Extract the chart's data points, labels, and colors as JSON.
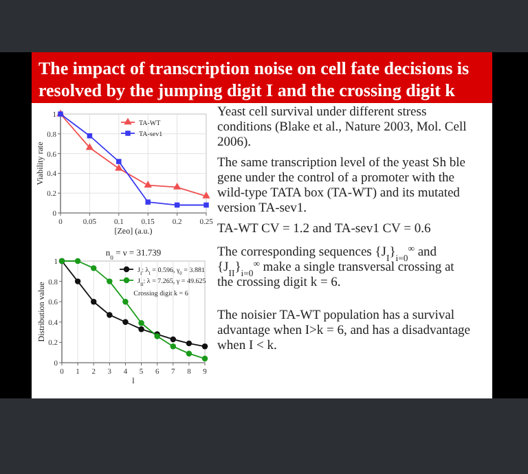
{
  "chart_data": [
    {
      "type": "other",
      "title": "The impact of transcription noise on cell fate decisions is resolved by the jumping digit I and the crossing digit k",
      "annotations": [
        "Yeast cell survival under different stress conditions (Blake et al., Nature 2003, Mol. Cell 2006).",
        "The same transcription level of the yeast Sh ble gene under the control of a promoter with the wild-type TATA box (TA-WT) and its mutated version TA-sev1.",
        "TA-WT CV = 1.2 and TA-sev1 CV = 0.6",
        "The corresponding sequences {J$_{I}$}$_{i=0}$$^{∞}$ and {J$_{II}$}$_{i=0}$$^{∞}$ make a single transversal crossing at the crossing digit k = 6.",
        "The noisier TA-WT population has a survival advantage when I>k = 6, and has a disadvantage when I < k."
      ]
    },
    {
      "type": "line",
      "xlabel": "[Zeo] (a.u.)",
      "ylabel": "Viability rate",
      "xlim": [
        0,
        0.25
      ],
      "xticks": [
        0,
        0.05,
        0.1,
        0.15,
        0.2,
        0.25
      ],
      "ylim": [
        0,
        1
      ],
      "yticks": [
        0,
        0.2,
        0.4,
        0.6,
        0.8,
        1
      ],
      "grid": true,
      "legend": "top right",
      "series": [
        {
          "name": "TA-WT",
          "color": "#f05050",
          "marker": "triangle",
          "x": [
            0,
            0.05,
            0.1,
            0.15,
            0.2,
            0.25
          ],
          "values": [
            1,
            0.66,
            0.45,
            0.28,
            0.26,
            0.17
          ]
        },
        {
          "name": "TA-sev1",
          "color": "#3a3af0",
          "marker": "square",
          "x": [
            0,
            0.05,
            0.1,
            0.15,
            0.2,
            0.25
          ],
          "values": [
            1,
            0.78,
            0.52,
            0.11,
            0.08,
            0.08
          ]
        }
      ]
    },
    {
      "type": "line",
      "title": "n$_{0}$ = ν = 31.739",
      "xlabel": "l",
      "ylabel": "Distribution value",
      "xlim": [
        0,
        9
      ],
      "xticks": [
        0,
        1,
        2,
        3,
        4,
        5,
        6,
        7,
        8,
        9
      ],
      "ylim": [
        0,
        1
      ],
      "yticks": [
        0,
        0.2,
        0.4,
        0.6,
        0.8,
        1
      ],
      "grid": "x",
      "legend": "top right",
      "marker": "circle",
      "annotations": [
        "Crossing digit k = 6"
      ],
      "series": [
        {
          "name": "J$_{I}$: λ$_{I}$ = 0.596, γ$_{0}$ = 3.881",
          "color": "#111111",
          "x": [
            0,
            1,
            2,
            3,
            4,
            5,
            6,
            7,
            8,
            9
          ],
          "values": [
            1,
            0.8,
            0.6,
            0.47,
            0.4,
            0.33,
            0.28,
            0.23,
            0.19,
            0.16
          ]
        },
        {
          "name": "J$_{II}$: λ = 7.265, γ = 49.625",
          "color": "#1a9a1a",
          "x": [
            0,
            1,
            2,
            3,
            4,
            5,
            6,
            7,
            8,
            9
          ],
          "values": [
            1,
            1,
            0.93,
            0.8,
            0.6,
            0.39,
            0.26,
            0.16,
            0.09,
            0.04
          ]
        }
      ]
    }
  ]
}
